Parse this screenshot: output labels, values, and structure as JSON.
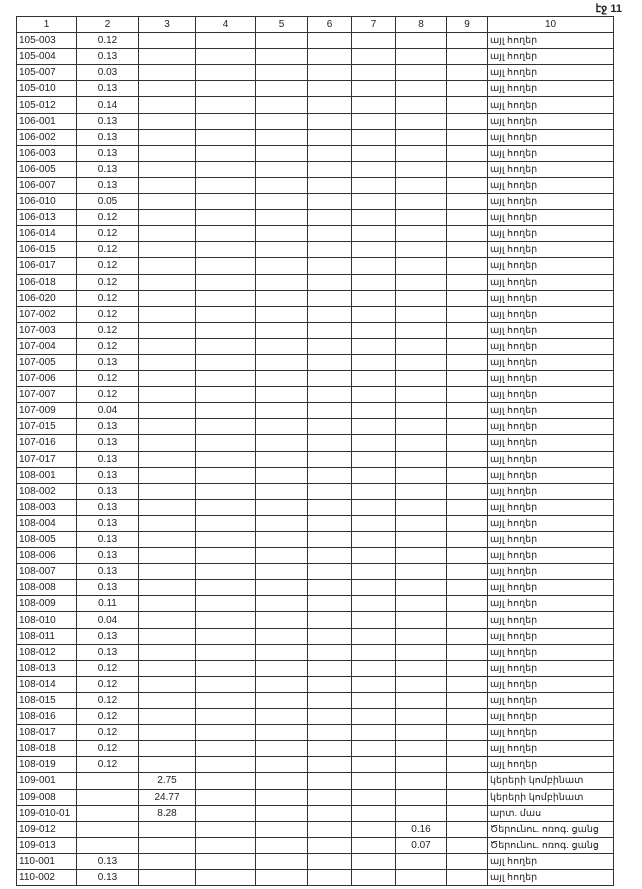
{
  "page_label": "էջ 11",
  "headers": [
    "1",
    "2",
    "3",
    "4",
    "5",
    "6",
    "7",
    "8",
    "9",
    "10"
  ],
  "rows": [
    [
      "105-003",
      "0.12",
      "",
      "",
      "",
      "",
      "",
      "",
      "",
      "այլ հողեր"
    ],
    [
      "105-004",
      "0.13",
      "",
      "",
      "",
      "",
      "",
      "",
      "",
      "այլ հողեր"
    ],
    [
      "105-007",
      "0.03",
      "",
      "",
      "",
      "",
      "",
      "",
      "",
      "այլ հողեր"
    ],
    [
      "105-010",
      "0.13",
      "",
      "",
      "",
      "",
      "",
      "",
      "",
      "այլ հողեր"
    ],
    [
      "105-012",
      "0.14",
      "",
      "",
      "",
      "",
      "",
      "",
      "",
      "այլ հողեր"
    ],
    [
      "106-001",
      "0.13",
      "",
      "",
      "",
      "",
      "",
      "",
      "",
      "այլ հողեր"
    ],
    [
      "106-002",
      "0.13",
      "",
      "",
      "",
      "",
      "",
      "",
      "",
      "այլ հողեր"
    ],
    [
      "106-003",
      "0.13",
      "",
      "",
      "",
      "",
      "",
      "",
      "",
      "այլ հողեր"
    ],
    [
      "106-005",
      "0.13",
      "",
      "",
      "",
      "",
      "",
      "",
      "",
      "այլ հողեր"
    ],
    [
      "106-007",
      "0.13",
      "",
      "",
      "",
      "",
      "",
      "",
      "",
      "այլ հողեր"
    ],
    [
      "106-010",
      "0.05",
      "",
      "",
      "",
      "",
      "",
      "",
      "",
      "այլ հողեր"
    ],
    [
      "106-013",
      "0.12",
      "",
      "",
      "",
      "",
      "",
      "",
      "",
      "այլ հողեր"
    ],
    [
      "106-014",
      "0.12",
      "",
      "",
      "",
      "",
      "",
      "",
      "",
      "այլ հողեր"
    ],
    [
      "106-015",
      "0.12",
      "",
      "",
      "",
      "",
      "",
      "",
      "",
      "այլ հողեր"
    ],
    [
      "106-017",
      "0.12",
      "",
      "",
      "",
      "",
      "",
      "",
      "",
      "այլ հողեր"
    ],
    [
      "106-018",
      "0.12",
      "",
      "",
      "",
      "",
      "",
      "",
      "",
      "այլ հողեր"
    ],
    [
      "106-020",
      "0.12",
      "",
      "",
      "",
      "",
      "",
      "",
      "",
      "այլ հողեր"
    ],
    [
      "107-002",
      "0.12",
      "",
      "",
      "",
      "",
      "",
      "",
      "",
      "այլ հողեր"
    ],
    [
      "107-003",
      "0.12",
      "",
      "",
      "",
      "",
      "",
      "",
      "",
      "այլ հողեր"
    ],
    [
      "107-004",
      "0.12",
      "",
      "",
      "",
      "",
      "",
      "",
      "",
      "այլ հողեր"
    ],
    [
      "107-005",
      "0.13",
      "",
      "",
      "",
      "",
      "",
      "",
      "",
      "այլ հողեր"
    ],
    [
      "107-006",
      "0.12",
      "",
      "",
      "",
      "",
      "",
      "",
      "",
      "այլ հողեր"
    ],
    [
      "107-007",
      "0.12",
      "",
      "",
      "",
      "",
      "",
      "",
      "",
      "այլ հողեր"
    ],
    [
      "107-009",
      "0.04",
      "",
      "",
      "",
      "",
      "",
      "",
      "",
      "այլ հողեր"
    ],
    [
      "107-015",
      "0.13",
      "",
      "",
      "",
      "",
      "",
      "",
      "",
      "այլ հողեր"
    ],
    [
      "107-016",
      "0.13",
      "",
      "",
      "",
      "",
      "",
      "",
      "",
      "այլ հողեր"
    ],
    [
      "107-017",
      "0.13",
      "",
      "",
      "",
      "",
      "",
      "",
      "",
      "այլ հողեր"
    ],
    [
      "108-001",
      "0.13",
      "",
      "",
      "",
      "",
      "",
      "",
      "",
      "այլ հողեր"
    ],
    [
      "108-002",
      "0.13",
      "",
      "",
      "",
      "",
      "",
      "",
      "",
      "այլ հողեր"
    ],
    [
      "108-003",
      "0.13",
      "",
      "",
      "",
      "",
      "",
      "",
      "",
      "այլ հողեր"
    ],
    [
      "108-004",
      "0.13",
      "",
      "",
      "",
      "",
      "",
      "",
      "",
      "այլ հողեր"
    ],
    [
      "108-005",
      "0.13",
      "",
      "",
      "",
      "",
      "",
      "",
      "",
      "այլ հողեր"
    ],
    [
      "108-006",
      "0.13",
      "",
      "",
      "",
      "",
      "",
      "",
      "",
      "այլ հողեր"
    ],
    [
      "108-007",
      "0.13",
      "",
      "",
      "",
      "",
      "",
      "",
      "",
      "այլ հողեր"
    ],
    [
      "108-008",
      "0.13",
      "",
      "",
      "",
      "",
      "",
      "",
      "",
      "այլ հողեր"
    ],
    [
      "108-009",
      "0.11",
      "",
      "",
      "",
      "",
      "",
      "",
      "",
      "այլ հողեր"
    ],
    [
      "108-010",
      "0.04",
      "",
      "",
      "",
      "",
      "",
      "",
      "",
      "այլ հողեր"
    ],
    [
      "108-011",
      "0.13",
      "",
      "",
      "",
      "",
      "",
      "",
      "",
      "այլ հողեր"
    ],
    [
      "108-012",
      "0.13",
      "",
      "",
      "",
      "",
      "",
      "",
      "",
      "այլ հողեր"
    ],
    [
      "108-013",
      "0.12",
      "",
      "",
      "",
      "",
      "",
      "",
      "",
      "այլ հողեր"
    ],
    [
      "108-014",
      "0.12",
      "",
      "",
      "",
      "",
      "",
      "",
      "",
      "այլ հողեր"
    ],
    [
      "108-015",
      "0.12",
      "",
      "",
      "",
      "",
      "",
      "",
      "",
      "այլ հողեր"
    ],
    [
      "108-016",
      "0.12",
      "",
      "",
      "",
      "",
      "",
      "",
      "",
      "այլ հողեր"
    ],
    [
      "108-017",
      "0.12",
      "",
      "",
      "",
      "",
      "",
      "",
      "",
      "այլ հողեր"
    ],
    [
      "108-018",
      "0.12",
      "",
      "",
      "",
      "",
      "",
      "",
      "",
      "այլ հողեր"
    ],
    [
      "108-019",
      "0.12",
      "",
      "",
      "",
      "",
      "",
      "",
      "",
      "այլ հողեր"
    ],
    [
      "109-001",
      "",
      "2.75",
      "",
      "",
      "",
      "",
      "",
      "",
      "կերերի կոմբինատ"
    ],
    [
      "109-008",
      "",
      "24.77",
      "",
      "",
      "",
      "",
      "",
      "",
      "կերերի կոմբինատ"
    ],
    [
      "109-010-01",
      "",
      "8.28",
      "",
      "",
      "",
      "",
      "",
      "",
      "արտ. մաս"
    ],
    [
      "109-012",
      "",
      "",
      "",
      "",
      "",
      "",
      "0.16",
      "",
      "Ծերունու. ոռոգ. ցանց"
    ],
    [
      "109-013",
      "",
      "",
      "",
      "",
      "",
      "",
      "0.07",
      "",
      "Ծերունու. ոռոգ. ցանց"
    ],
    [
      "110-001",
      "0.13",
      "",
      "",
      "",
      "",
      "",
      "",
      "",
      "այլ հողեր"
    ],
    [
      "110-002",
      "0.13",
      "",
      "",
      "",
      "",
      "",
      "",
      "",
      "այլ հողեր"
    ]
  ]
}
